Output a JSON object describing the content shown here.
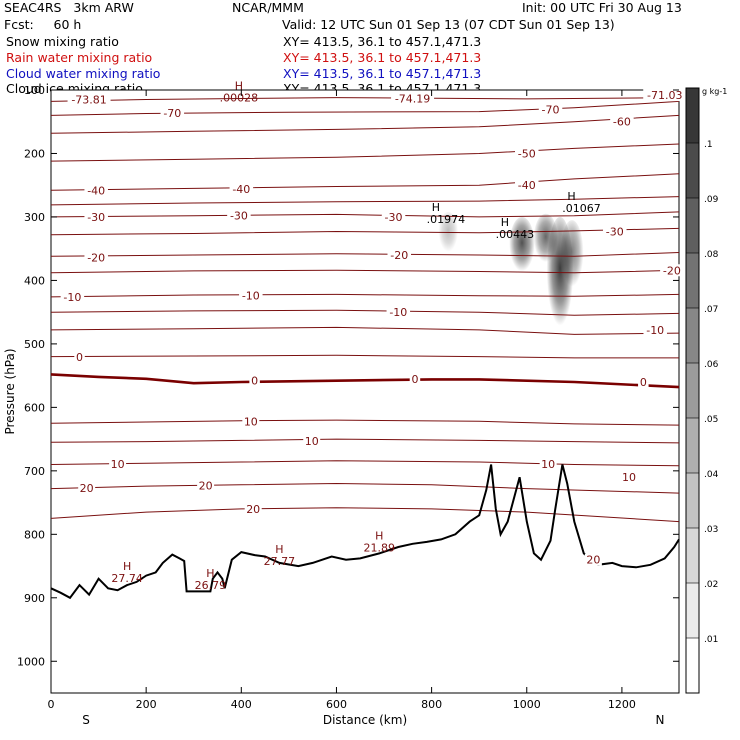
{
  "header": {
    "model": "SEAC4RS   3km ARW",
    "org": "NCAR/MMM",
    "init": "Init: 00 UTC Fri 30 Aug 13",
    "fcst": "Fcst:     60 h",
    "valid": "Valid: 12 UTC Sun 01 Sep 13 (07 CDT Sun 01 Sep 13)",
    "fields": [
      {
        "name": "Snow mixing ratio",
        "color": "#000000",
        "xy": "XY= 413.5, 36.1 to 457.1,471.3"
      },
      {
        "name": "Rain water mixing ratio",
        "color": "#d01010",
        "xy": "XY= 413.5, 36.1 to 457.1,471.3"
      },
      {
        "name": "Cloud water mixing ratio",
        "color": "#1010c0",
        "xy": "XY= 413.5, 36.1 to 457.1,471.3"
      },
      {
        "name": "Cloud ice mixing ratio",
        "color": "#000000",
        "xy": "XY= 413.5, 36.1 to 457.1,471.3"
      }
    ]
  },
  "chart_data": {
    "type": "contour-cross-section",
    "xlabel": "Distance (km)",
    "ylabel": "Pressure (hPa)",
    "xlim": [
      0,
      1320
    ],
    "ylim": [
      1050,
      100
    ],
    "xticks": [
      0,
      200,
      400,
      600,
      800,
      1000,
      1200
    ],
    "yticks": [
      100,
      200,
      300,
      400,
      500,
      600,
      700,
      800,
      900,
      1000
    ],
    "x_end_labels": {
      "left": "S",
      "right": "N"
    },
    "temperature_contours": {
      "color": "#7a1010",
      "zero_color": "#7a0000",
      "levels": [
        -70,
        -60,
        -50,
        -40,
        -30,
        -20,
        -10,
        0,
        10,
        20
      ],
      "lines": [
        {
          "level": -73.81,
          "p": [
            [
              0,
              118
            ],
            [
              200,
              115
            ],
            [
              600,
              112
            ],
            [
              1000,
              114
            ],
            [
              1320,
              112
            ]
          ]
        },
        {
          "level": -70,
          "p": [
            [
              0,
              140
            ],
            [
              200,
              137
            ],
            [
              500,
              135
            ],
            [
              900,
              134
            ],
            [
              1100,
              128
            ],
            [
              1320,
              118
            ]
          ]
        },
        {
          "level": -60,
          "p": [
            [
              0,
              168
            ],
            [
              300,
              165
            ],
            [
              600,
              162
            ],
            [
              900,
              158
            ],
            [
              1100,
              150
            ],
            [
              1320,
              140
            ]
          ]
        },
        {
          "level": -50,
          "p": [
            [
              0,
              212
            ],
            [
              300,
              209
            ],
            [
              600,
              206
            ],
            [
              900,
              200
            ],
            [
              1100,
              192
            ],
            [
              1320,
              185
            ]
          ]
        },
        {
          "level": -40,
          "p": [
            [
              0,
              258
            ],
            [
              300,
              255
            ],
            [
              600,
              252
            ],
            [
              900,
              250
            ],
            [
              1100,
              240
            ],
            [
              1320,
              232
            ]
          ]
        },
        {
          "level": -40,
          "p": [
            [
              0,
              281
            ],
            [
              300,
              278
            ],
            [
              600,
              276
            ],
            [
              900,
              275
            ],
            [
              1100,
              272
            ],
            [
              1320,
              268
            ]
          ]
        },
        {
          "level": -30,
          "p": [
            [
              0,
              300
            ],
            [
              300,
              298
            ],
            [
              600,
              296
            ],
            [
              900,
              300
            ],
            [
              1100,
              298
            ],
            [
              1320,
              292
            ]
          ]
        },
        {
          "level": -30,
          "p": [
            [
              0,
              328
            ],
            [
              300,
              326
            ],
            [
              600,
              323
            ],
            [
              900,
              325
            ],
            [
              1100,
              322
            ],
            [
              1320,
              318
            ]
          ]
        },
        {
          "level": -20,
          "p": [
            [
              0,
              362
            ],
            [
              300,
              360
            ],
            [
              600,
              358
            ],
            [
              900,
              360
            ],
            [
              1100,
              362
            ],
            [
              1320,
              356
            ]
          ]
        },
        {
          "level": -20,
          "p": [
            [
              0,
              388
            ],
            [
              300,
              385
            ],
            [
              600,
              384
            ],
            [
              900,
              386
            ],
            [
              1100,
              388
            ],
            [
              1320,
              384
            ]
          ]
        },
        {
          "level": -10,
          "p": [
            [
              0,
              426
            ],
            [
              300,
              423
            ],
            [
              600,
              422
            ],
            [
              900,
              424
            ],
            [
              1100,
              425
            ],
            [
              1320,
              422
            ]
          ]
        },
        {
          "level": -10,
          "p": [
            [
              0,
              450
            ],
            [
              300,
              448
            ],
            [
              600,
              447
            ],
            [
              900,
              450
            ],
            [
              1100,
              455
            ],
            [
              1320,
              452
            ]
          ]
        },
        {
          "level": -10,
          "p": [
            [
              0,
              478
            ],
            [
              300,
              476
            ],
            [
              600,
              474
            ],
            [
              900,
              478
            ],
            [
              1100,
              485
            ],
            [
              1320,
              483
            ]
          ]
        },
        {
          "level": 0,
          "p": [
            [
              0,
              520
            ],
            [
              300,
              519
            ],
            [
              600,
              518
            ],
            [
              900,
              520
            ],
            [
              1100,
              522
            ],
            [
              1320,
              522
            ]
          ]
        },
        {
          "level": 0,
          "p": [
            [
              0,
              548
            ],
            [
              100,
              552
            ],
            [
              200,
              555
            ],
            [
              300,
              562
            ],
            [
              400,
              560
            ],
            [
              600,
              558
            ],
            [
              800,
              556
            ],
            [
              900,
              556
            ],
            [
              1100,
              560
            ],
            [
              1320,
              568
            ]
          ]
        },
        {
          "level": 10,
          "p": [
            [
              0,
              625
            ],
            [
              200,
              623
            ],
            [
              400,
              621
            ],
            [
              600,
              620
            ],
            [
              900,
              622
            ],
            [
              1100,
              626
            ],
            [
              1320,
              628
            ]
          ]
        },
        {
          "level": 10,
          "p": [
            [
              0,
              655
            ],
            [
              200,
              654
            ],
            [
              400,
              652
            ],
            [
              600,
              650
            ],
            [
              900,
              652
            ],
            [
              1100,
              654
            ],
            [
              1320,
              656
            ]
          ]
        },
        {
          "level": 10,
          "p": [
            [
              0,
              690
            ],
            [
              200,
              688
            ],
            [
              400,
              686
            ],
            [
              600,
              684
            ],
            [
              900,
              686
            ],
            [
              1100,
              690
            ],
            [
              1320,
              692
            ]
          ]
        },
        {
          "level": 20,
          "p": [
            [
              0,
              728
            ],
            [
              200,
              724
            ],
            [
              400,
              722
            ],
            [
              600,
              720
            ],
            [
              800,
              722
            ],
            [
              1000,
              728
            ],
            [
              1320,
              735
            ]
          ]
        },
        {
          "level": 20,
          "p": [
            [
              0,
              775
            ],
            [
              200,
              765
            ],
            [
              400,
              760
            ],
            [
              600,
              758
            ],
            [
              800,
              760
            ],
            [
              1000,
              765
            ],
            [
              1320,
              780
            ]
          ]
        }
      ],
      "labels": [
        {
          "text": "-73.81",
          "x": 80,
          "p": 115
        },
        {
          "text": "-74.19",
          "x": 760,
          "p": 113
        },
        {
          "text": "-71.03",
          "x": 1290,
          "p": 108
        },
        {
          "text": "-70",
          "x": 255,
          "p": 136
        },
        {
          "text": "-70",
          "x": 1050,
          "p": 131
        },
        {
          "text": "-60",
          "x": 1200,
          "p": 150
        },
        {
          "text": "-50",
          "x": 1000,
          "p": 200
        },
        {
          "text": "-40",
          "x": 95,
          "p": 258
        },
        {
          "text": "-40",
          "x": 400,
          "p": 256
        },
        {
          "text": "-40",
          "x": 1000,
          "p": 250
        },
        {
          "text": "-30",
          "x": 95,
          "p": 300
        },
        {
          "text": "-30",
          "x": 395,
          "p": 298
        },
        {
          "text": "-30",
          "x": 720,
          "p": 300
        },
        {
          "text": "-30",
          "x": 1185,
          "p": 323
        },
        {
          "text": "-20",
          "x": 95,
          "p": 364
        },
        {
          "text": "-20",
          "x": 732,
          "p": 360
        },
        {
          "text": "-20",
          "x": 1305,
          "p": 384
        },
        {
          "text": "-10",
          "x": 45,
          "p": 426
        },
        {
          "text": "-10",
          "x": 420,
          "p": 424
        },
        {
          "text": "-10",
          "x": 730,
          "p": 450
        },
        {
          "text": "-10",
          "x": 1270,
          "p": 478
        },
        {
          "text": "0",
          "x": 60,
          "p": 521
        },
        {
          "text": "0",
          "x": 428,
          "p": 558
        },
        {
          "text": "0",
          "x": 765,
          "p": 555
        },
        {
          "text": "0",
          "x": 1245,
          "p": 560
        },
        {
          "text": "10",
          "x": 420,
          "p": 622
        },
        {
          "text": "10",
          "x": 548,
          "p": 653
        },
        {
          "text": "10",
          "x": 140,
          "p": 689
        },
        {
          "text": "10",
          "x": 1045,
          "p": 689
        },
        {
          "text": "10",
          "x": 1215,
          "p": 710
        },
        {
          "text": "20",
          "x": 75,
          "p": 727
        },
        {
          "text": "20",
          "x": 325,
          "p": 723
        },
        {
          "text": "20",
          "x": 425,
          "p": 760
        },
        {
          "text": "20",
          "x": 1140,
          "p": 840
        }
      ],
      "extrema": [
        {
          "mark": "H",
          "value": ".00028",
          "x": 395,
          "p": 115
        },
        {
          "mark": "H",
          "value": "27.74",
          "x": 160,
          "p": 872
        },
        {
          "mark": "H",
          "value": "26.79",
          "x": 335,
          "p": 883
        },
        {
          "mark": "H",
          "value": "27.77",
          "x": 480,
          "p": 845
        },
        {
          "mark": "H",
          "value": "21.89",
          "x": 690,
          "p": 824
        }
      ]
    },
    "snow_mixing_ratio": {
      "unit": "g kg-1",
      "colorbar_levels": [
        0.01,
        0.02,
        0.03,
        0.04,
        0.05,
        0.06,
        0.07,
        0.08,
        0.09,
        0.1
      ],
      "colorbar_labels": [
        ".01",
        ".02",
        ".03",
        ".04",
        ".05",
        ".06",
        ".07",
        ".08",
        ".09",
        ".1"
      ],
      "cells": [
        {
          "x": 835,
          "p_top": 292,
          "p_bot": 358,
          "max": 0.03
        },
        {
          "x": 990,
          "p_top": 300,
          "p_bot": 390,
          "max": 0.08
        },
        {
          "x": 1040,
          "p_top": 295,
          "p_bot": 375,
          "max": 0.07
        },
        {
          "x": 1070,
          "p_top": 300,
          "p_bot": 480,
          "max": 0.09
        },
        {
          "x": 1095,
          "p_top": 305,
          "p_bot": 415,
          "max": 0.06
        }
      ],
      "extrema": [
        {
          "mark": "H",
          "value": ".01974",
          "x": 830,
          "p": 306
        },
        {
          "mark": "H",
          "value": ".00443",
          "x": 975,
          "p": 330
        },
        {
          "mark": "H",
          "value": ".01067",
          "x": 1115,
          "p": 289
        }
      ]
    },
    "terrain": {
      "color": "#000000",
      "p": [
        [
          0,
          885
        ],
        [
          20,
          892
        ],
        [
          40,
          900
        ],
        [
          60,
          880
        ],
        [
          80,
          895
        ],
        [
          100,
          870
        ],
        [
          120,
          885
        ],
        [
          140,
          888
        ],
        [
          160,
          880
        ],
        [
          180,
          875
        ],
        [
          200,
          865
        ],
        [
          220,
          860
        ],
        [
          235,
          845
        ],
        [
          255,
          832
        ],
        [
          270,
          838
        ],
        [
          280,
          842
        ],
        [
          285,
          890
        ],
        [
          310,
          890
        ],
        [
          335,
          890
        ],
        [
          340,
          870
        ],
        [
          350,
          860
        ],
        [
          360,
          870
        ],
        [
          365,
          885
        ],
        [
          380,
          840
        ],
        [
          400,
          828
        ],
        [
          430,
          833
        ],
        [
          450,
          835
        ],
        [
          480,
          845
        ],
        [
          520,
          850
        ],
        [
          550,
          845
        ],
        [
          590,
          835
        ],
        [
          620,
          840
        ],
        [
          650,
          838
        ],
        [
          690,
          830
        ],
        [
          730,
          820
        ],
        [
          760,
          815
        ],
        [
          790,
          812
        ],
        [
          820,
          808
        ],
        [
          850,
          800
        ],
        [
          880,
          780
        ],
        [
          900,
          770
        ],
        [
          915,
          730
        ],
        [
          925,
          690
        ],
        [
          935,
          760
        ],
        [
          945,
          800
        ],
        [
          960,
          780
        ],
        [
          985,
          710
        ],
        [
          1000,
          780
        ],
        [
          1015,
          830
        ],
        [
          1030,
          840
        ],
        [
          1050,
          810
        ],
        [
          1060,
          760
        ],
        [
          1075,
          690
        ],
        [
          1085,
          720
        ],
        [
          1100,
          780
        ],
        [
          1120,
          830
        ],
        [
          1150,
          848
        ],
        [
          1180,
          845
        ],
        [
          1200,
          850
        ],
        [
          1230,
          852
        ],
        [
          1260,
          848
        ],
        [
          1290,
          838
        ],
        [
          1310,
          820
        ],
        [
          1320,
          808
        ]
      ]
    }
  }
}
